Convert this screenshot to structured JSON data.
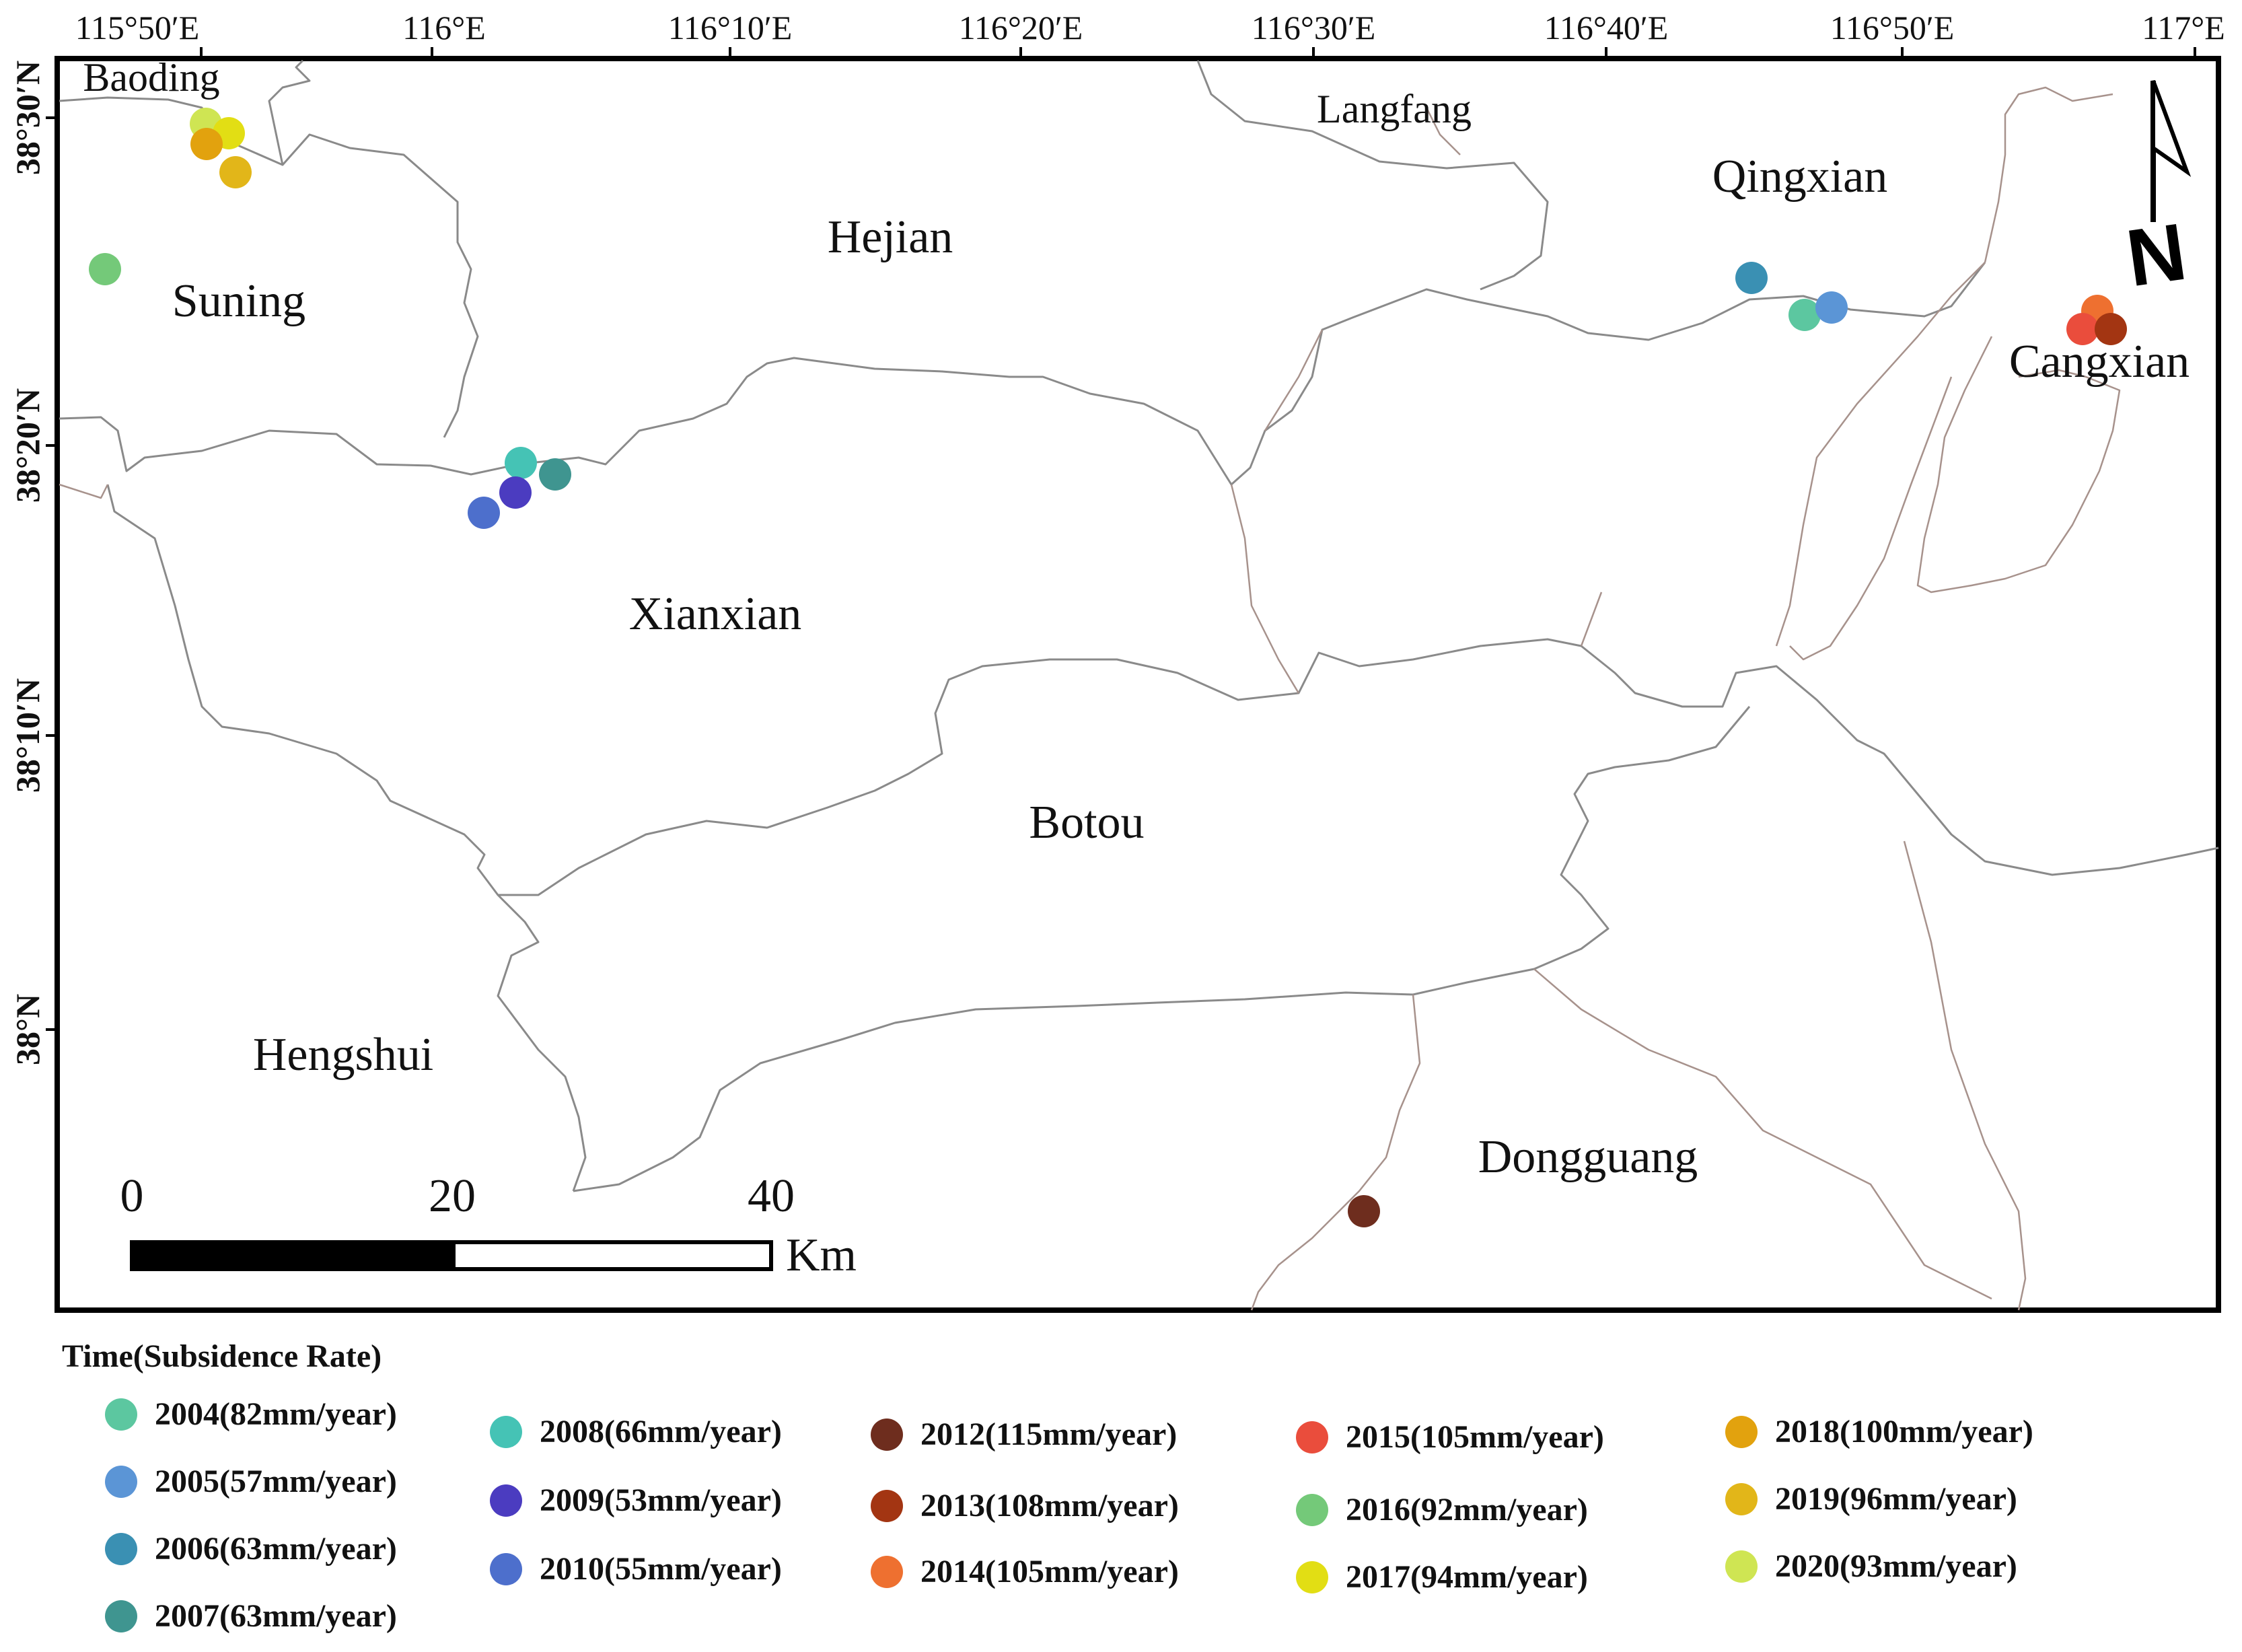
{
  "map": {
    "longitude_labels": [
      "115°50′E",
      "116°E",
      "116°10′E",
      "116°20′E",
      "116°30′E",
      "116°40′E",
      "116°50′E",
      "117°E"
    ],
    "latitude_labels": [
      "38°30′N",
      "38°20′N",
      "38°10′N",
      "38°N"
    ],
    "places": [
      {
        "name": "Baoding"
      },
      {
        "name": "Langfang"
      },
      {
        "name": "Qingxian"
      },
      {
        "name": "Hejian"
      },
      {
        "name": "Suning"
      },
      {
        "name": "Cangxian"
      },
      {
        "name": "Xianxian"
      },
      {
        "name": "Botou"
      },
      {
        "name": "Hengshui"
      },
      {
        "name": "Dongguang"
      }
    ],
    "scale_bar": {
      "labels": [
        "0",
        "20",
        "40"
      ],
      "unit": "Km"
    },
    "north_arrow": {
      "letter": "N"
    }
  },
  "legend": {
    "title": "Time(Subsidence Rate)",
    "items": [
      {
        "label": "2004(82mm/year)",
        "color": "#5cc7a0"
      },
      {
        "label": "2005(57mm/year)",
        "color": "#5b95d6"
      },
      {
        "label": "2006(63mm/year)",
        "color": "#3a90b3"
      },
      {
        "label": "2007(63mm/year)",
        "color": "#3f9590"
      },
      {
        "label": "2008(66mm/year)",
        "color": "#45c3b5"
      },
      {
        "label": "2009(53mm/year)",
        "color": "#4b3cc0"
      },
      {
        "label": "2010(55mm/year)",
        "color": "#4d6fcc"
      },
      {
        "label": "2012(115mm/year)",
        "color": "#6e2d1e"
      },
      {
        "label": "2013(108mm/year)",
        "color": "#a33512"
      },
      {
        "label": "2014(105mm/year)",
        "color": "#ee7030"
      },
      {
        "label": "2015(105mm/year)",
        "color": "#ea4d3c"
      },
      {
        "label": "2016(92mm/year)",
        "color": "#74c979"
      },
      {
        "label": "2017(94mm/year)",
        "color": "#e2de14"
      },
      {
        "label": "2018(100mm/year)",
        "color": "#e2a20e"
      },
      {
        "label": "2019(96mm/year)",
        "color": "#e2b619"
      },
      {
        "label": "2020(93mm/year)",
        "color": "#cfe553"
      }
    ]
  }
}
